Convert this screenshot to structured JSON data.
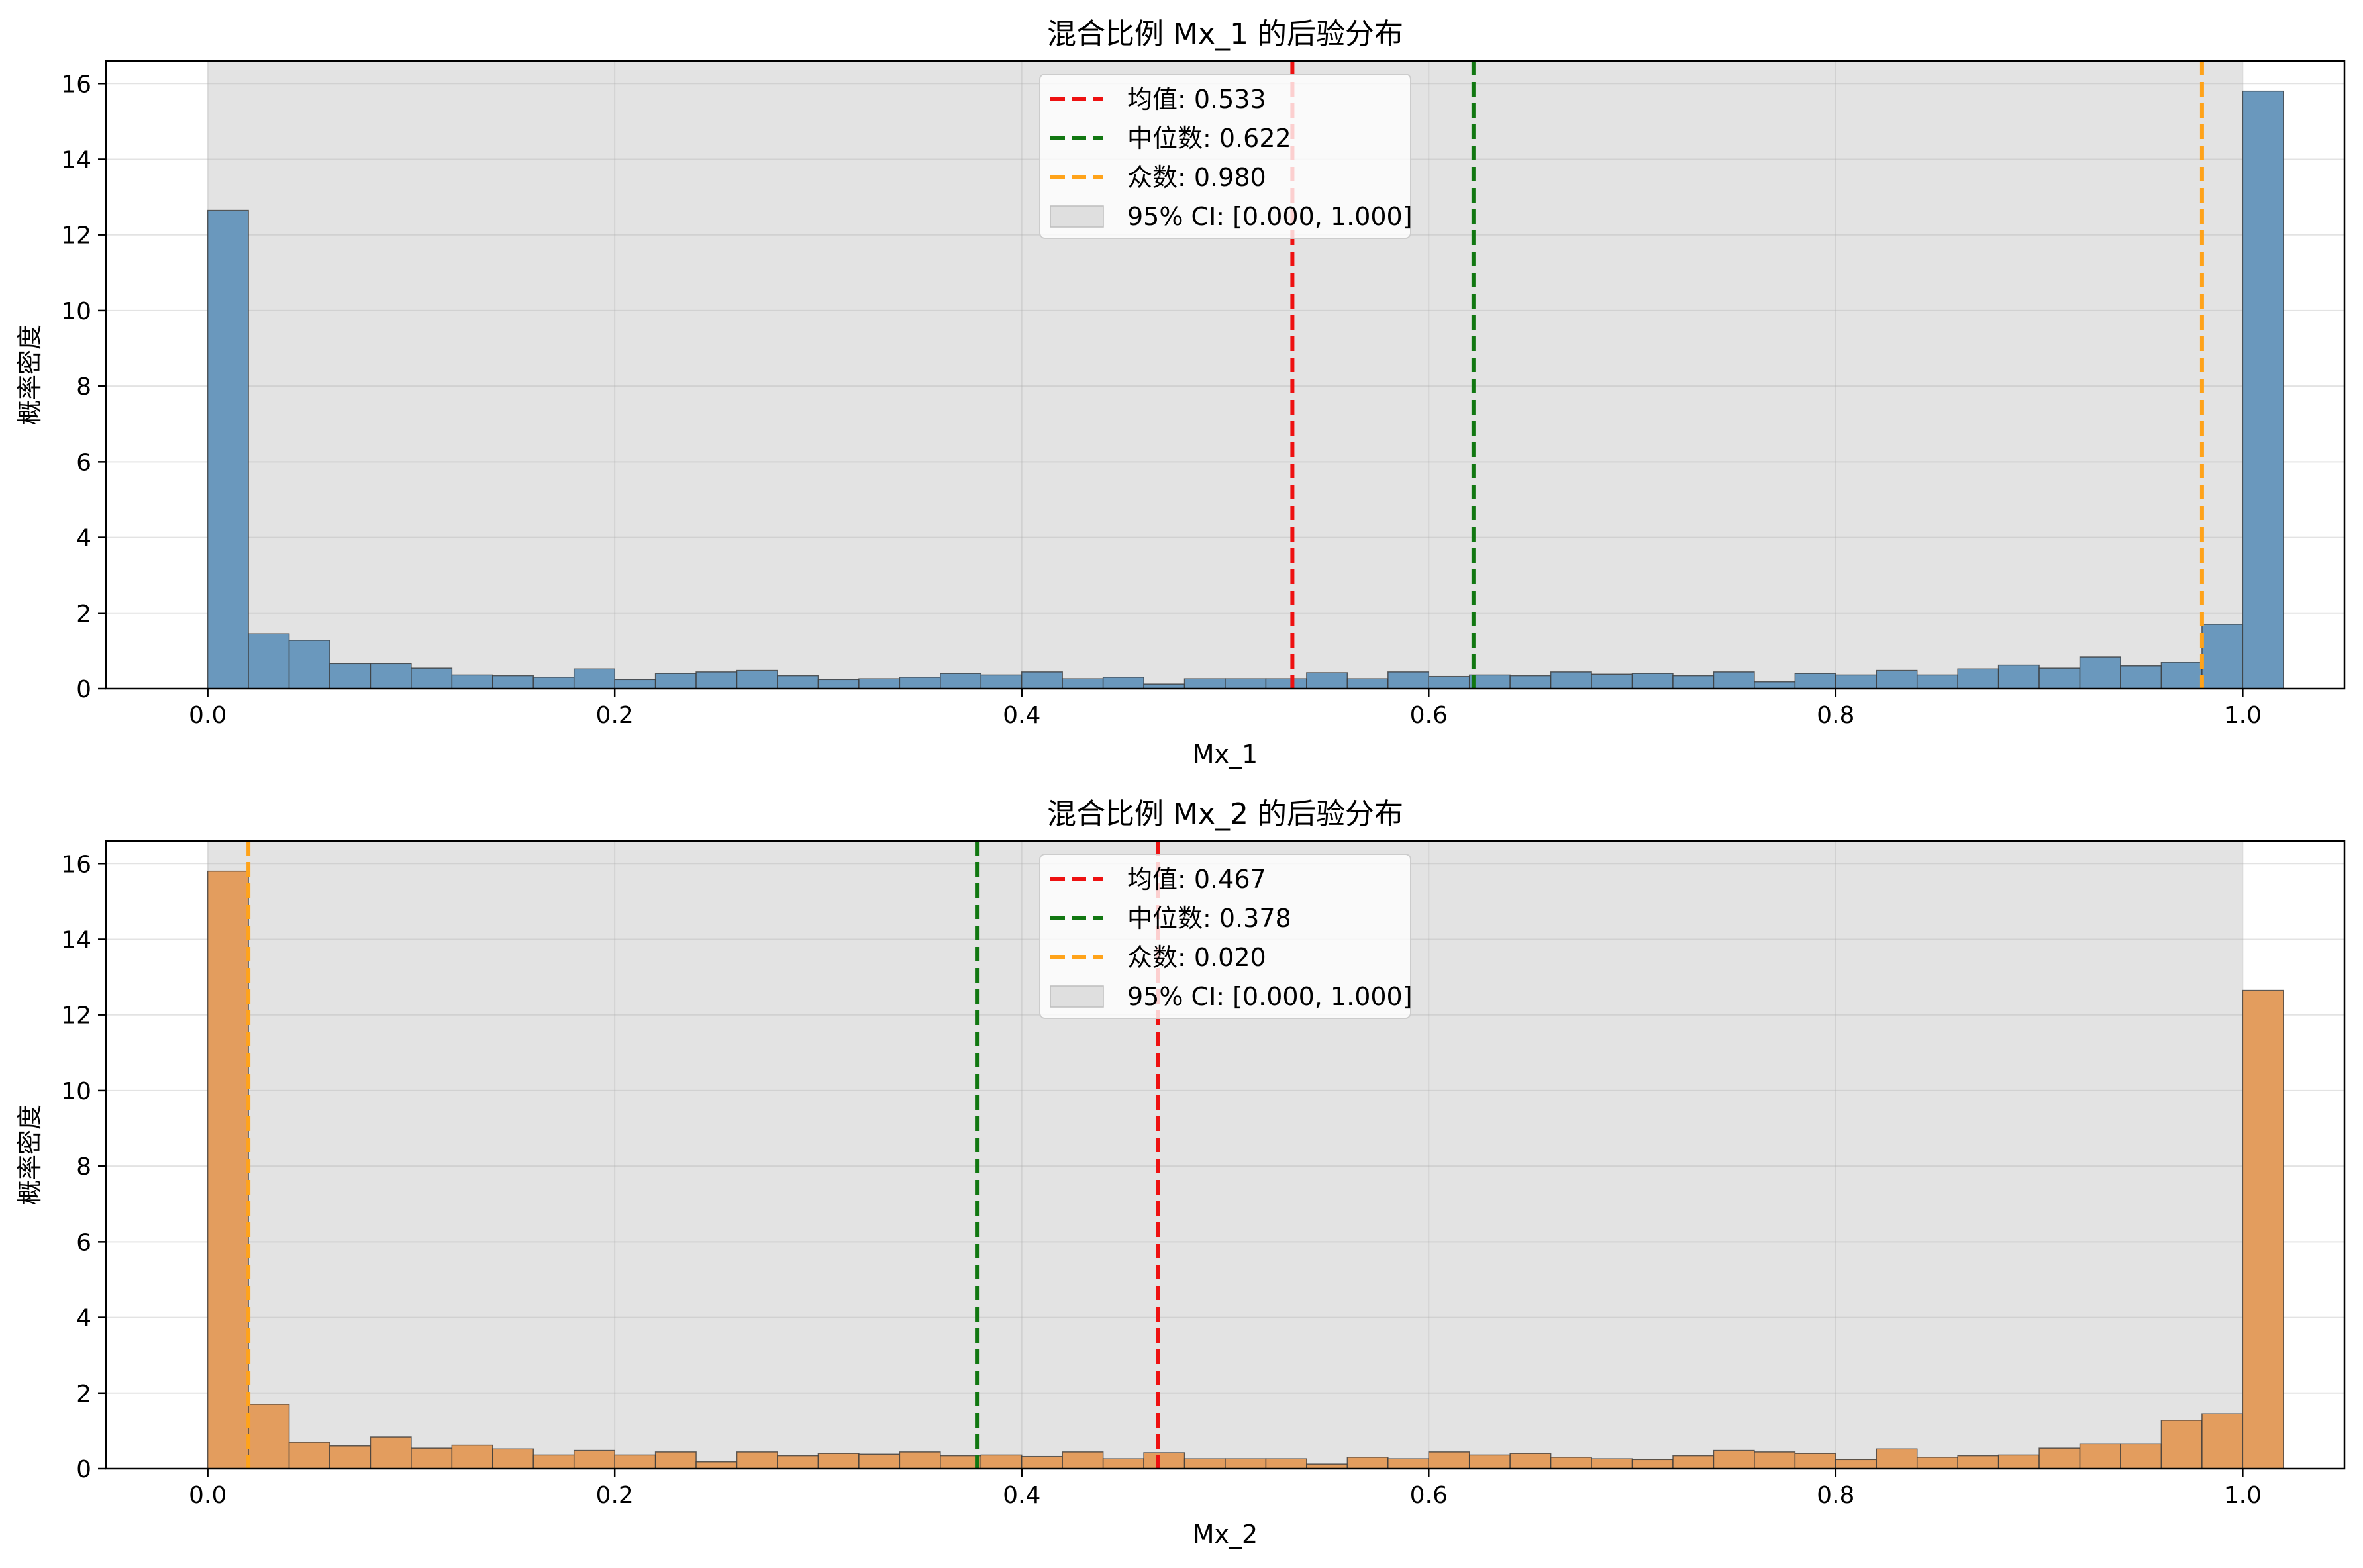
{
  "chart_data": [
    {
      "type": "bar",
      "title": "混合比例 Mx_1 的后验分布",
      "xlabel": "Mx_1",
      "ylabel": "概率密度",
      "xlim": [
        -0.05,
        1.05
      ],
      "ylim": [
        0,
        16.6
      ],
      "xticks": [
        "0.0",
        "0.2",
        "0.4",
        "0.6",
        "0.8",
        "1.0"
      ],
      "yticks": [
        "0",
        "2",
        "4",
        "6",
        "8",
        "10",
        "12",
        "14",
        "16"
      ],
      "bin_width": 0.02,
      "bin_start": 0.0,
      "bar_color": "#6a98bd",
      "values": [
        12.65,
        1.45,
        1.28,
        0.66,
        0.66,
        0.54,
        0.36,
        0.34,
        0.3,
        0.52,
        0.24,
        0.4,
        0.44,
        0.48,
        0.34,
        0.24,
        0.26,
        0.3,
        0.4,
        0.36,
        0.44,
        0.26,
        0.3,
        0.12,
        0.26,
        0.26,
        0.26,
        0.42,
        0.26,
        0.44,
        0.32,
        0.36,
        0.34,
        0.44,
        0.38,
        0.4,
        0.34,
        0.44,
        0.18,
        0.4,
        0.36,
        0.48,
        0.36,
        0.52,
        0.62,
        0.54,
        0.84,
        0.6,
        0.7,
        1.7,
        15.8
      ],
      "ci_span": [
        0.0,
        1.0
      ],
      "vlines": [
        {
          "label": "均值: 0.533",
          "x": 0.533,
          "color": "#ee1111"
        },
        {
          "label": "中位数: 0.622",
          "x": 0.622,
          "color": "#117711"
        },
        {
          "label": "众数: 0.980",
          "x": 0.98,
          "color": "#ffa31a"
        }
      ],
      "ci_label": "95% CI: [0.000, 1.000]",
      "legend_position": "top-center",
      "grid": true
    },
    {
      "type": "bar",
      "title": "混合比例 Mx_2 的后验分布",
      "xlabel": "Mx_2",
      "ylabel": "概率密度",
      "xlim": [
        -0.05,
        1.05
      ],
      "ylim": [
        0,
        16.6
      ],
      "xticks": [
        "0.0",
        "0.2",
        "0.4",
        "0.6",
        "0.8",
        "1.0"
      ],
      "yticks": [
        "0",
        "2",
        "4",
        "6",
        "8",
        "10",
        "12",
        "14",
        "16"
      ],
      "bin_width": 0.02,
      "bin_start": 0.0,
      "bar_color": "#e39d5e",
      "values": [
        15.8,
        1.7,
        0.7,
        0.6,
        0.84,
        0.54,
        0.62,
        0.52,
        0.36,
        0.48,
        0.36,
        0.44,
        0.18,
        0.44,
        0.34,
        0.4,
        0.38,
        0.44,
        0.34,
        0.36,
        0.32,
        0.44,
        0.26,
        0.42,
        0.26,
        0.26,
        0.26,
        0.12,
        0.3,
        0.26,
        0.44,
        0.36,
        0.4,
        0.3,
        0.26,
        0.24,
        0.34,
        0.48,
        0.44,
        0.4,
        0.24,
        0.52,
        0.3,
        0.34,
        0.36,
        0.54,
        0.66,
        0.66,
        1.28,
        1.45,
        12.65
      ],
      "ci_span": [
        0.0,
        1.0
      ],
      "vlines": [
        {
          "label": "均值: 0.467",
          "x": 0.467,
          "color": "#ee1111"
        },
        {
          "label": "中位数: 0.378",
          "x": 0.378,
          "color": "#117711"
        },
        {
          "label": "众数: 0.020",
          "x": 0.02,
          "color": "#ffa31a"
        }
      ],
      "ci_label": "95% CI: [0.000, 1.000]",
      "legend_position": "top-center",
      "grid": true
    }
  ]
}
